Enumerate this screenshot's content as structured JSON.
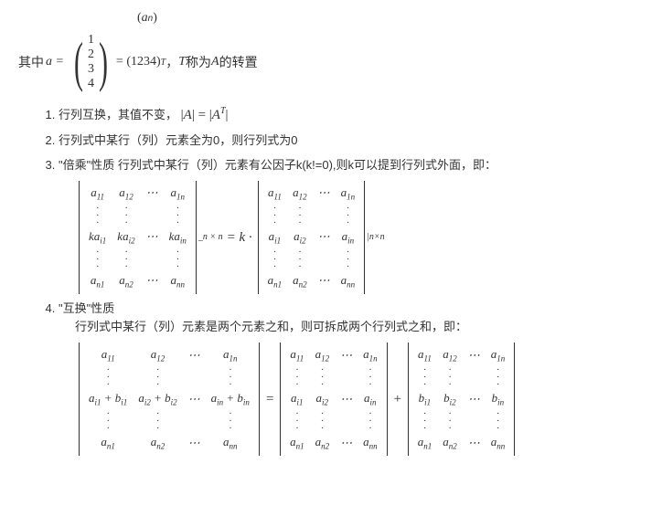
{
  "topline": {
    "a_n_paren_open": "(",
    "a_n": "a",
    "a_n_sub": "n",
    "a_n_paren_close": ")"
  },
  "intro": {
    "prefix": "其中",
    "a_eq": "a =",
    "col": [
      "1",
      "2",
      "3",
      "4"
    ],
    "eq_text": " = (1234)",
    "sup_T": "T",
    "comma": "，",
    "T_text": "T",
    "suffix": "称为",
    "A_text": "A",
    "suffix2": "的转置"
  },
  "items": {
    "p1_a": "行列互换，其值不变，",
    "p1_eq": "|A| = |A",
    "p1_T": "T",
    "p1_end": "|",
    "p2": "行列式中某行（列）元素全为0，则行列式为0",
    "p3_a": "\"倍乘\"性质 行列式中某行（列）元素有公因子k(k!=0),则k可以提到行列式外面，即：",
    "p4_title": "\"互换\"性质",
    "p4_desc": "行列式中某行（列）元素是两个元素之和，则可拆成两个行列式之和，即："
  },
  "det3": {
    "row1": [
      "a<sub class='sub'>11</sub>",
      "a<sub class='sub'>12</sub>",
      "⋯",
      "a<sub class='sub'>1n</sub>"
    ],
    "rowk": [
      "ka<sub class='sub'>i1</sub>",
      "ka<sub class='sub'>i2</sub>",
      "⋯",
      "ka<sub class='sub'>in</sub>"
    ],
    "rowi": [
      "a<sub class='sub'>i1</sub>",
      "a<sub class='sub'>i2</sub>",
      "⋯",
      "a<sub class='sub'>in</sub>"
    ],
    "rown": [
      "a<sub class='sub'>n1</sub>",
      "a<sub class='sub'>n2</sub>",
      "⋯",
      "a<sub class='sub'>nn</sub>"
    ],
    "dots": [
      "·",
      "·",
      "",
      "·"
    ],
    "tag_nn": "_n × n",
    "mid": " = k · ",
    "tag_nn2": "|n×n"
  },
  "det4": {
    "row1": [
      "a<sub class='sub'>11</sub>",
      "a<sub class='sub'>12</sub>",
      "⋯",
      "a<sub class='sub'>1n</sub>"
    ],
    "rowab": [
      "a<sub class='sub'>i1</sub> + b<sub class='sub'>i1</sub>",
      "a<sub class='sub'>i2</sub> + b<sub class='sub'>i2</sub>",
      "⋯",
      "a<sub class='sub'>in</sub> + b<sub class='sub'>in</sub>"
    ],
    "rowi": [
      "a<sub class='sub'>i1</sub>",
      "a<sub class='sub'>i2</sub>",
      "⋯",
      "a<sub class='sub'>in</sub>"
    ],
    "rowb": [
      "b<sub class='sub'>i1</sub>",
      "b<sub class='sub'>i2</sub>",
      "⋯",
      "b<sub class='sub'>in</sub>"
    ],
    "rown": [
      "a<sub class='sub'>n1</sub>",
      "a<sub class='sub'>n2</sub>",
      "⋯",
      "a<sub class='sub'>nn</sub>"
    ],
    "dots": [
      "·",
      "·",
      "",
      "·"
    ],
    "eq": " = ",
    "plus": " + "
  }
}
